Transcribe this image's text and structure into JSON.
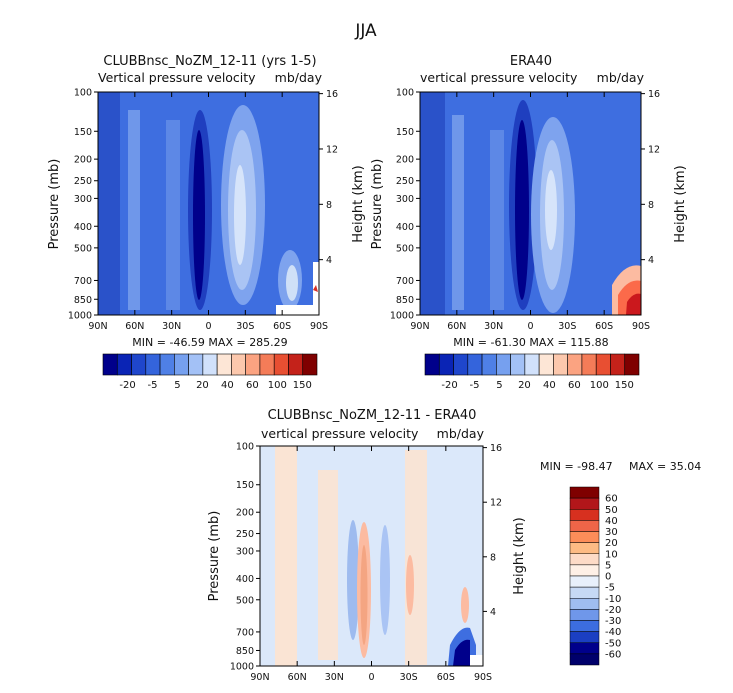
{
  "page_title": "JJA",
  "colors": {
    "neg_dark": "#00008b",
    "neg_mid": "#2f5fd8",
    "neg_light": "#cfe0f7",
    "pos_light": "#fde3cf",
    "pos_mid": "#f46d43",
    "pos_dark": "#8b0000"
  },
  "chart_data": [
    {
      "type": "heatmap",
      "title": "CLUBBnsc_NoZM_12-11 (yrs 1-5)",
      "subtitle_left": "Vertical pressure velocity",
      "subtitle_right": "mb/day",
      "xlabel": "",
      "ylabel": "Pressure (mb)",
      "ylabel_right": "Height (km)",
      "x_ticks": [
        "90N",
        "60N",
        "30N",
        "0",
        "30S",
        "60S",
        "90S"
      ],
      "y_ticks": [
        100,
        150,
        200,
        250,
        300,
        400,
        500,
        700,
        850,
        1000
      ],
      "y_right_ticks": [
        16,
        12,
        8,
        4
      ],
      "stats": "MIN = -46.59   MAX = 285.29",
      "colorbar_labels": [
        "-20",
        "-5",
        "5",
        "20",
        "40",
        "60",
        "100",
        "150"
      ]
    },
    {
      "type": "heatmap",
      "title": "ERA40",
      "subtitle_left": "vertical pressure velocity",
      "subtitle_right": "mb/day",
      "ylabel": "Pressure (mb)",
      "ylabel_right": "Height (km)",
      "x_ticks": [
        "90N",
        "60N",
        "30N",
        "0",
        "30S",
        "60S",
        "90S"
      ],
      "y_ticks": [
        100,
        150,
        200,
        250,
        300,
        400,
        500,
        700,
        850,
        1000
      ],
      "y_right_ticks": [
        16,
        12,
        8,
        4
      ],
      "stats": "MIN = -61.30   MAX = 115.88",
      "colorbar_labels": [
        "-20",
        "-5",
        "5",
        "20",
        "40",
        "60",
        "100",
        "150"
      ]
    },
    {
      "type": "heatmap",
      "title": "CLUBBnsc_NoZM_12-11 - ERA40",
      "subtitle_left": "vertical pressure velocity",
      "subtitle_right": "mb/day",
      "ylabel": "Pressure (mb)",
      "ylabel_right": "Height (km)",
      "x_ticks": [
        "90N",
        "60N",
        "30N",
        "0",
        "30S",
        "60S",
        "90S"
      ],
      "y_ticks": [
        100,
        150,
        200,
        250,
        300,
        400,
        500,
        700,
        850,
        1000
      ],
      "y_right_ticks": [
        16,
        12,
        8,
        4
      ],
      "stats_min": "MIN = -98.47",
      "stats_max": "MAX =  35.04",
      "colorbar_labels": [
        "60",
        "50",
        "40",
        "30",
        "20",
        "10",
        "5",
        "0",
        "-5",
        "-10",
        "-20",
        "-30",
        "-40",
        "-50",
        "-60"
      ]
    }
  ]
}
